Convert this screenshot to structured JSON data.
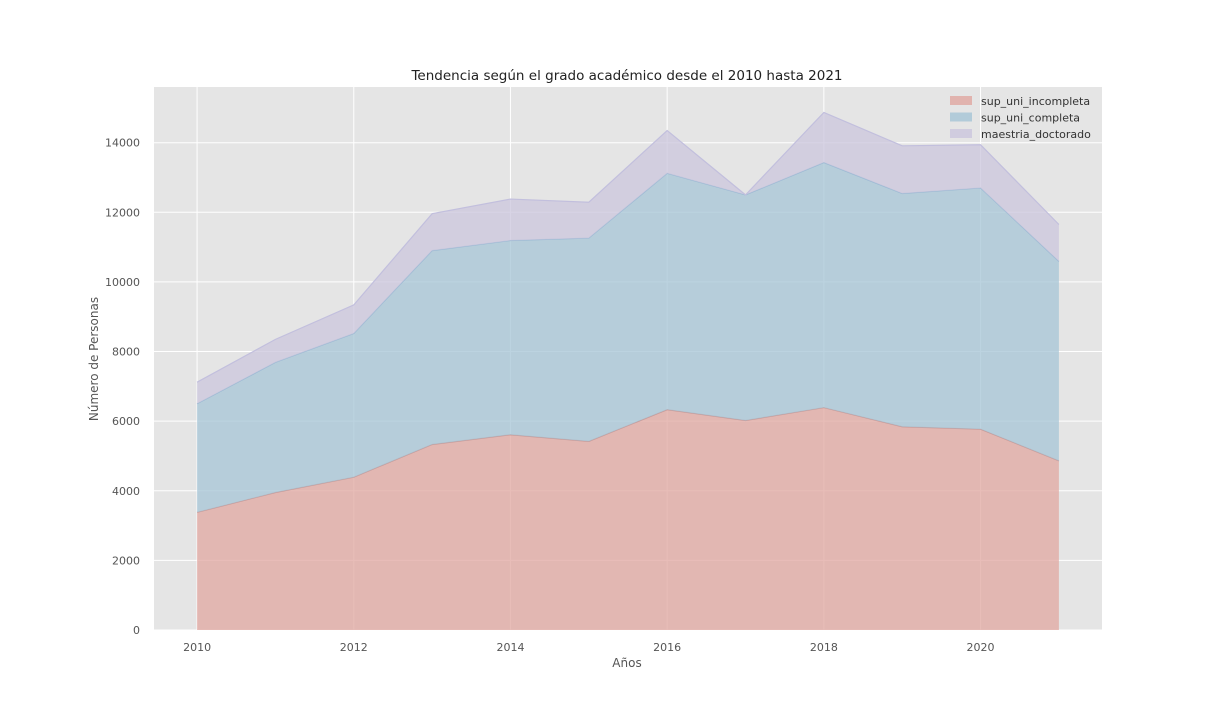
{
  "chart_data": {
    "type": "area",
    "stacked": true,
    "title": "Tendencia según el grado académico desde el 2010 hasta 2021",
    "xlabel": "Años",
    "ylabel": "Número de Personas",
    "x": [
      2010,
      2011,
      2012,
      2013,
      2014,
      2015,
      2016,
      2017,
      2018,
      2019,
      2020,
      2021
    ],
    "xticks": [
      2010,
      2012,
      2014,
      2016,
      2018,
      2020
    ],
    "yticks": [
      0,
      2000,
      4000,
      6000,
      8000,
      10000,
      12000,
      14000
    ],
    "xlim": [
      2009.45,
      2021.55
    ],
    "ylim": [
      0,
      15600
    ],
    "grid": true,
    "legend_position": "top-right",
    "series": [
      {
        "name": "sup_uni_incompleta",
        "color": "#e1aaa4",
        "line_color": "#c79a98",
        "values": [
          3380,
          3950,
          4390,
          5330,
          5610,
          5420,
          6330,
          6020,
          6390,
          5840,
          5770,
          4860
        ]
      },
      {
        "name": "sup_uni_completa",
        "color": "#a9c7d7",
        "line_color": "#9bbad4",
        "values": [
          3120,
          3740,
          4130,
          5570,
          5580,
          5840,
          6790,
          6480,
          7040,
          6700,
          6930,
          5730
        ]
      },
      {
        "name": "maestria_doctorado",
        "color": "#cdc8de",
        "line_color": "#c2bfdd",
        "values": [
          620,
          660,
          820,
          1060,
          1190,
          1030,
          1230,
          0,
          1440,
          1370,
          1240,
          1060
        ]
      }
    ]
  }
}
